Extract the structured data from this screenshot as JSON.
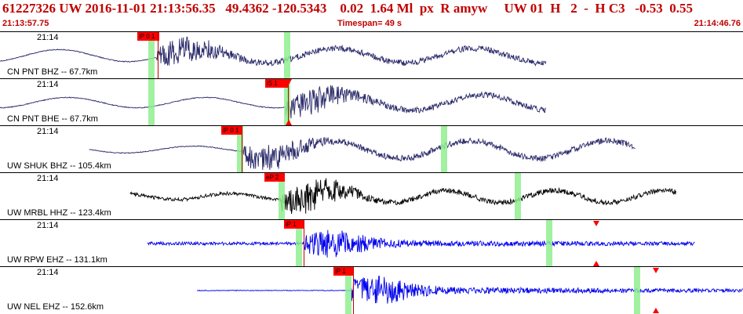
{
  "header": {
    "event_line": "61227326 UW 2016-11-01 21:13:56.35   49.4362 -120.5343    0.02  1.64 Ml  px  R amyw     UW 01  H   2  -  H C3   -0.53  0.55",
    "start_time": "21:13:57.75",
    "timespan": "Timespan=  49 s",
    "end_time": "21:14:46.76"
  },
  "panels": [
    {
      "time_label": "21:14",
      "station": "CN PNT BHZ -- 67.7km",
      "pick": "iP 0 1",
      "color": "#2b2b6b",
      "seed": 11,
      "style": "smooth",
      "start": 0.0,
      "end": 0.735,
      "onset": 0.21,
      "amp_pre": 0.35,
      "amp_post": 0.7
    },
    {
      "time_label": "21:14",
      "station": "CN PNT BHE -- 67.7km",
      "pick": "iS 1",
      "color": "#2b2b6b",
      "seed": 23,
      "style": "smooth",
      "start": 0.0,
      "end": 0.735,
      "onset": 0.385,
      "amp_pre": 0.3,
      "amp_post": 0.75
    },
    {
      "time_label": "21:14",
      "station": "UW SHUK BHZ -- 105.4km",
      "pick": "iP 0 1",
      "color": "#2b2b6b",
      "seed": 37,
      "style": "smooth",
      "start": 0.12,
      "end": 0.855,
      "onset": 0.325,
      "amp_pre": 0.2,
      "amp_post": 0.85
    },
    {
      "time_label": "21:14",
      "station": "UW MRBL HHZ -- 123.4km",
      "pick": "eP 2",
      "color": "#000000",
      "seed": 53,
      "style": "mixed",
      "start": 0.175,
      "end": 0.91,
      "onset": 0.378,
      "amp_pre": 0.12,
      "amp_post": 0.9
    },
    {
      "time_label": "21:14",
      "station": "UW RPW EHZ -- 131.1km",
      "pick": "iP 1",
      "color": "#0000ee",
      "seed": 71,
      "style": "noise",
      "start": 0.198,
      "end": 0.935,
      "onset": 0.41,
      "amp_pre": 0.18,
      "amp_post": 0.95
    },
    {
      "time_label": "21:14",
      "station": "UW NEL EHZ -- 152.6km",
      "pick": "iP 1",
      "color": "#0000ee",
      "seed": 89,
      "style": "noise",
      "start": 0.265,
      "end": 1.0,
      "onset": 0.472,
      "amp_pre": 0.04,
      "amp_post": 0.9
    }
  ]
}
